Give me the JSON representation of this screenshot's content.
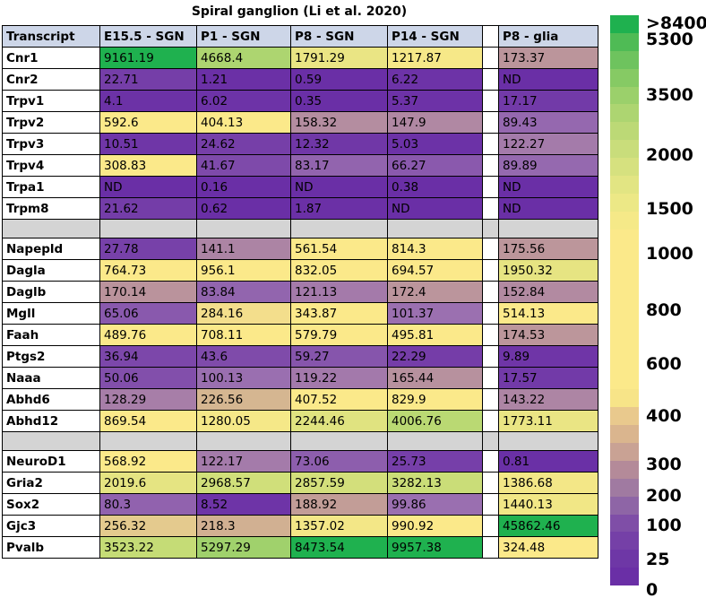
{
  "title": "Spiral ganglion (Li et al. 2020)",
  "chart_data": {
    "type": "heatmap",
    "title": "Spiral ganglion (Li et al. 2020)",
    "columns": [
      "Transcript",
      "E15.5 - SGN",
      "P1 - SGN",
      "P8 - SGN",
      "P14 - SGN",
      "",
      "P8 - glia"
    ],
    "groups": [
      {
        "rows": [
          {
            "transcript": "Cnr1",
            "values": [
              "9161.19",
              "4668.4",
              "1791.29",
              "1217.87",
              "173.37"
            ]
          },
          {
            "transcript": "Cnr2",
            "values": [
              "22.71",
              "1.21",
              "0.59",
              "6.22",
              "ND"
            ]
          },
          {
            "transcript": "Trpv1",
            "values": [
              "4.1",
              "6.02",
              "0.35",
              "5.37",
              "17.17"
            ]
          },
          {
            "transcript": "Trpv2",
            "values": [
              "592.6",
              "404.13",
              "158.32",
              "147.9",
              "89.43"
            ]
          },
          {
            "transcript": "Trpv3",
            "values": [
              "10.51",
              "24.62",
              "12.32",
              "5.03",
              "122.27"
            ]
          },
          {
            "transcript": "Trpv4",
            "values": [
              "308.83",
              "41.67",
              "83.17",
              "66.27",
              "89.89"
            ]
          },
          {
            "transcript": "Trpa1",
            "values": [
              "ND",
              "0.16",
              "ND",
              "0.38",
              "ND"
            ]
          },
          {
            "transcript": "Trpm8",
            "values": [
              "21.62",
              "0.62",
              "1.87",
              "ND",
              "ND"
            ]
          }
        ]
      },
      {
        "rows": [
          {
            "transcript": "Napepld",
            "values": [
              "27.78",
              "141.1",
              "561.54",
              "814.3",
              "175.56"
            ]
          },
          {
            "transcript": "Dagla",
            "values": [
              "764.73",
              "956.1",
              "832.05",
              "694.57",
              "1950.32"
            ]
          },
          {
            "transcript": "Daglb",
            "values": [
              "170.14",
              "83.84",
              "121.13",
              "172.4",
              "152.84"
            ]
          },
          {
            "transcript": "Mgll",
            "values": [
              "65.06",
              "284.16",
              "343.87",
              "101.37",
              "514.13"
            ]
          },
          {
            "transcript": "Faah",
            "values": [
              "489.76",
              "708.11",
              "579.79",
              "495.81",
              "174.53"
            ]
          },
          {
            "transcript": "Ptgs2",
            "values": [
              "36.94",
              "43.6",
              "59.27",
              "22.29",
              "9.89"
            ]
          },
          {
            "transcript": "Naaa",
            "values": [
              "50.06",
              "100.13",
              "119.22",
              "165.44",
              "17.57"
            ]
          },
          {
            "transcript": "Abhd6",
            "values": [
              "128.29",
              "226.56",
              "407.52",
              "829.9",
              "143.22"
            ]
          },
          {
            "transcript": "Abhd12",
            "values": [
              "869.54",
              "1280.05",
              "2244.46",
              "4006.76",
              "1773.11"
            ]
          }
        ]
      },
      {
        "rows": [
          {
            "transcript": "NeuroD1",
            "values": [
              "568.92",
              "122.17",
              "73.06",
              "25.73",
              "0.81"
            ]
          },
          {
            "transcript": "Gria2",
            "values": [
              "2019.6",
              "2968.57",
              "2857.59",
              "3282.13",
              "1386.68"
            ]
          },
          {
            "transcript": "Sox2",
            "values": [
              "80.3",
              "8.52",
              "188.92",
              "99.86",
              "1440.13"
            ]
          },
          {
            "transcript": "Gjc3",
            "values": [
              "256.32",
              "218.3",
              "1357.02",
              "990.92",
              "45862.46"
            ]
          },
          {
            "transcript": "Pvalb",
            "values": [
              "3523.22",
              "5297.29",
              "8473.54",
              "9957.38",
              "324.48"
            ]
          }
        ]
      }
    ],
    "color_scale": {
      "labels": [
        ">8400",
        "5300",
        "3500",
        "2000",
        "1500",
        "1000",
        "800",
        "600",
        "400",
        "300",
        "200",
        "100",
        "25",
        "0"
      ],
      "thresholds": [
        0,
        25,
        100,
        200,
        300,
        400,
        600,
        800,
        1000,
        1500,
        2000,
        3500,
        5300,
        8400
      ],
      "colors": {
        "low": "#6a2fa6",
        "mid_low": "#c7a394",
        "mid": "#fbe98a",
        "high": "#c5dc76",
        "top": "#1fb14f"
      }
    }
  }
}
